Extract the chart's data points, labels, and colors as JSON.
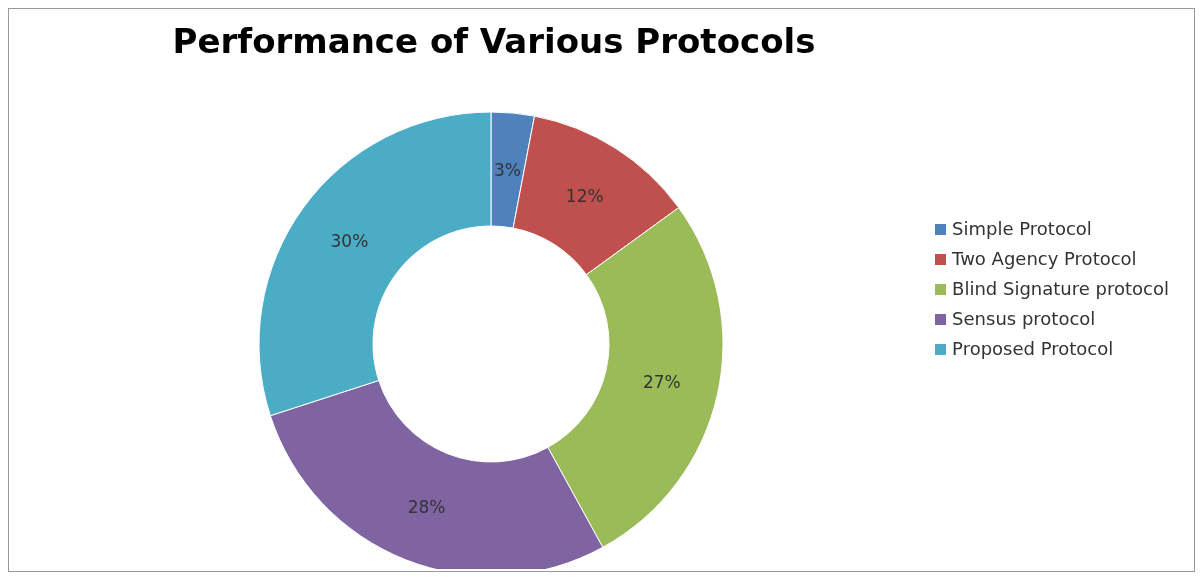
{
  "chart_data": {
    "type": "donut",
    "title": "Performance of Various Protocols",
    "categories": [
      "Simple Protocol",
      "Two Agency Protocol",
      "Blind Signature protocol",
      "Sensus protocol",
      "Proposed Protocol"
    ],
    "values": [
      3,
      12,
      27,
      28,
      30
    ],
    "value_labels": [
      "3%",
      "12%",
      "27%",
      "28%",
      "30%"
    ],
    "colors": [
      "#4f81bd",
      "#c0504d",
      "#9bbb59",
      "#8064a2",
      "#4bacc6"
    ],
    "legend": "right"
  }
}
